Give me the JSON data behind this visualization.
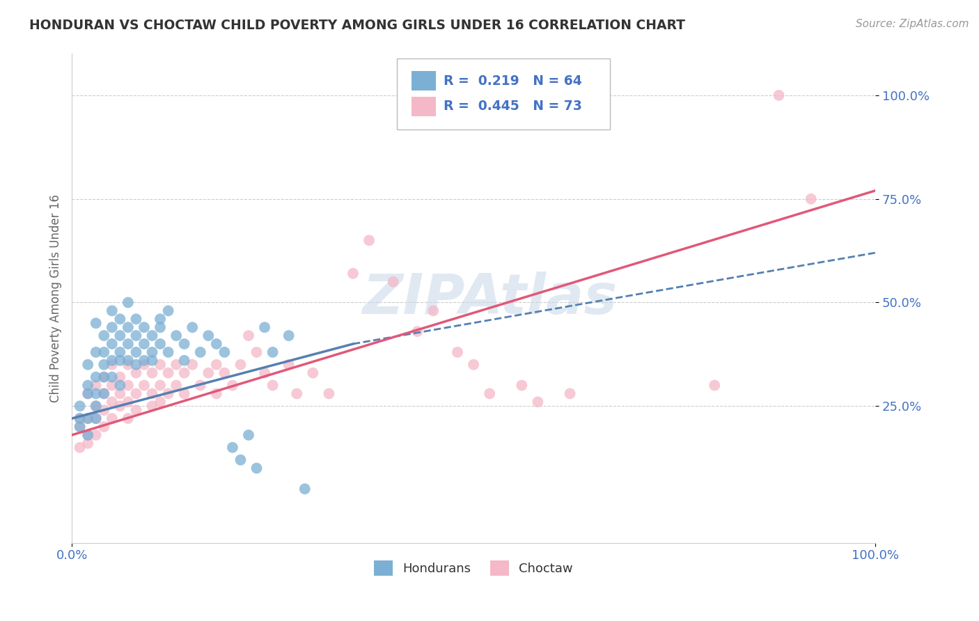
{
  "title": "HONDURAN VS CHOCTAW CHILD POVERTY AMONG GIRLS UNDER 16 CORRELATION CHART",
  "source": "Source: ZipAtlas.com",
  "ylabel": "Child Poverty Among Girls Under 16",
  "blue_R": 0.219,
  "blue_N": 64,
  "pink_R": 0.445,
  "pink_N": 73,
  "blue_color": "#7bafd4",
  "pink_color": "#f4b8c8",
  "blue_line_color": "#5580b0",
  "pink_line_color": "#e05878",
  "blue_label": "Hondurans",
  "pink_label": "Choctaw",
  "watermark": "ZIPAtlas",
  "background_color": "#ffffff",
  "grid_color": "#cccccc",
  "title_color": "#333333",
  "axis_label_color": "#666666",
  "tick_label_color": "#4472c4",
  "legend_text_color": "#4472c4",
  "blue_scatter": [
    [
      0.01,
      0.22
    ],
    [
      0.01,
      0.2
    ],
    [
      0.01,
      0.25
    ],
    [
      0.02,
      0.3
    ],
    [
      0.02,
      0.22
    ],
    [
      0.02,
      0.18
    ],
    [
      0.02,
      0.28
    ],
    [
      0.02,
      0.35
    ],
    [
      0.03,
      0.32
    ],
    [
      0.03,
      0.28
    ],
    [
      0.03,
      0.38
    ],
    [
      0.03,
      0.22
    ],
    [
      0.03,
      0.45
    ],
    [
      0.03,
      0.25
    ],
    [
      0.04,
      0.38
    ],
    [
      0.04,
      0.32
    ],
    [
      0.04,
      0.28
    ],
    [
      0.04,
      0.42
    ],
    [
      0.04,
      0.35
    ],
    [
      0.05,
      0.4
    ],
    [
      0.05,
      0.36
    ],
    [
      0.05,
      0.32
    ],
    [
      0.05,
      0.44
    ],
    [
      0.05,
      0.48
    ],
    [
      0.06,
      0.38
    ],
    [
      0.06,
      0.42
    ],
    [
      0.06,
      0.36
    ],
    [
      0.06,
      0.3
    ],
    [
      0.06,
      0.46
    ],
    [
      0.07,
      0.4
    ],
    [
      0.07,
      0.36
    ],
    [
      0.07,
      0.44
    ],
    [
      0.07,
      0.5
    ],
    [
      0.08,
      0.38
    ],
    [
      0.08,
      0.42
    ],
    [
      0.08,
      0.35
    ],
    [
      0.08,
      0.46
    ],
    [
      0.09,
      0.4
    ],
    [
      0.09,
      0.36
    ],
    [
      0.09,
      0.44
    ],
    [
      0.1,
      0.42
    ],
    [
      0.1,
      0.38
    ],
    [
      0.1,
      0.36
    ],
    [
      0.11,
      0.44
    ],
    [
      0.11,
      0.4
    ],
    [
      0.11,
      0.46
    ],
    [
      0.12,
      0.38
    ],
    [
      0.12,
      0.48
    ],
    [
      0.13,
      0.42
    ],
    [
      0.14,
      0.4
    ],
    [
      0.14,
      0.36
    ],
    [
      0.15,
      0.44
    ],
    [
      0.16,
      0.38
    ],
    [
      0.17,
      0.42
    ],
    [
      0.18,
      0.4
    ],
    [
      0.19,
      0.38
    ],
    [
      0.2,
      0.15
    ],
    [
      0.21,
      0.12
    ],
    [
      0.22,
      0.18
    ],
    [
      0.23,
      0.1
    ],
    [
      0.24,
      0.44
    ],
    [
      0.25,
      0.38
    ],
    [
      0.27,
      0.42
    ],
    [
      0.29,
      0.05
    ]
  ],
  "pink_scatter": [
    [
      0.01,
      0.2
    ],
    [
      0.01,
      0.15
    ],
    [
      0.01,
      0.22
    ],
    [
      0.02,
      0.28
    ],
    [
      0.02,
      0.22
    ],
    [
      0.02,
      0.18
    ],
    [
      0.02,
      0.16
    ],
    [
      0.03,
      0.3
    ],
    [
      0.03,
      0.25
    ],
    [
      0.03,
      0.22
    ],
    [
      0.03,
      0.18
    ],
    [
      0.04,
      0.32
    ],
    [
      0.04,
      0.28
    ],
    [
      0.04,
      0.24
    ],
    [
      0.04,
      0.2
    ],
    [
      0.05,
      0.35
    ],
    [
      0.05,
      0.3
    ],
    [
      0.05,
      0.26
    ],
    [
      0.05,
      0.22
    ],
    [
      0.06,
      0.32
    ],
    [
      0.06,
      0.28
    ],
    [
      0.06,
      0.25
    ],
    [
      0.07,
      0.35
    ],
    [
      0.07,
      0.3
    ],
    [
      0.07,
      0.26
    ],
    [
      0.07,
      0.22
    ],
    [
      0.08,
      0.33
    ],
    [
      0.08,
      0.28
    ],
    [
      0.08,
      0.24
    ],
    [
      0.09,
      0.35
    ],
    [
      0.09,
      0.3
    ],
    [
      0.1,
      0.33
    ],
    [
      0.1,
      0.28
    ],
    [
      0.1,
      0.25
    ],
    [
      0.11,
      0.35
    ],
    [
      0.11,
      0.3
    ],
    [
      0.11,
      0.26
    ],
    [
      0.12,
      0.33
    ],
    [
      0.12,
      0.28
    ],
    [
      0.13,
      0.35
    ],
    [
      0.13,
      0.3
    ],
    [
      0.14,
      0.33
    ],
    [
      0.14,
      0.28
    ],
    [
      0.15,
      0.35
    ],
    [
      0.16,
      0.3
    ],
    [
      0.17,
      0.33
    ],
    [
      0.18,
      0.35
    ],
    [
      0.18,
      0.28
    ],
    [
      0.19,
      0.33
    ],
    [
      0.2,
      0.3
    ],
    [
      0.21,
      0.35
    ],
    [
      0.22,
      0.42
    ],
    [
      0.23,
      0.38
    ],
    [
      0.24,
      0.33
    ],
    [
      0.25,
      0.3
    ],
    [
      0.27,
      0.35
    ],
    [
      0.28,
      0.28
    ],
    [
      0.3,
      0.33
    ],
    [
      0.32,
      0.28
    ],
    [
      0.35,
      0.57
    ],
    [
      0.37,
      0.65
    ],
    [
      0.4,
      0.55
    ],
    [
      0.43,
      0.43
    ],
    [
      0.45,
      0.48
    ],
    [
      0.48,
      0.38
    ],
    [
      0.5,
      0.35
    ],
    [
      0.52,
      0.28
    ],
    [
      0.56,
      0.3
    ],
    [
      0.58,
      0.26
    ],
    [
      0.62,
      0.28
    ],
    [
      0.8,
      0.3
    ],
    [
      0.88,
      1.0
    ],
    [
      0.92,
      0.75
    ]
  ],
  "blue_line": [
    [
      0.0,
      0.22
    ],
    [
      0.35,
      0.4
    ]
  ],
  "blue_dash_line": [
    [
      0.35,
      0.4
    ],
    [
      1.0,
      0.62
    ]
  ],
  "pink_line": [
    [
      0.0,
      0.18
    ],
    [
      1.0,
      0.77
    ]
  ],
  "xlim": [
    0.0,
    1.0
  ],
  "ylim": [
    -0.08,
    1.1
  ],
  "yticks": [
    0.25,
    0.5,
    0.75,
    1.0
  ],
  "ytick_labels": [
    "25.0%",
    "50.0%",
    "75.0%",
    "100.0%"
  ],
  "xtick_labels": [
    "0.0%",
    "100.0%"
  ]
}
